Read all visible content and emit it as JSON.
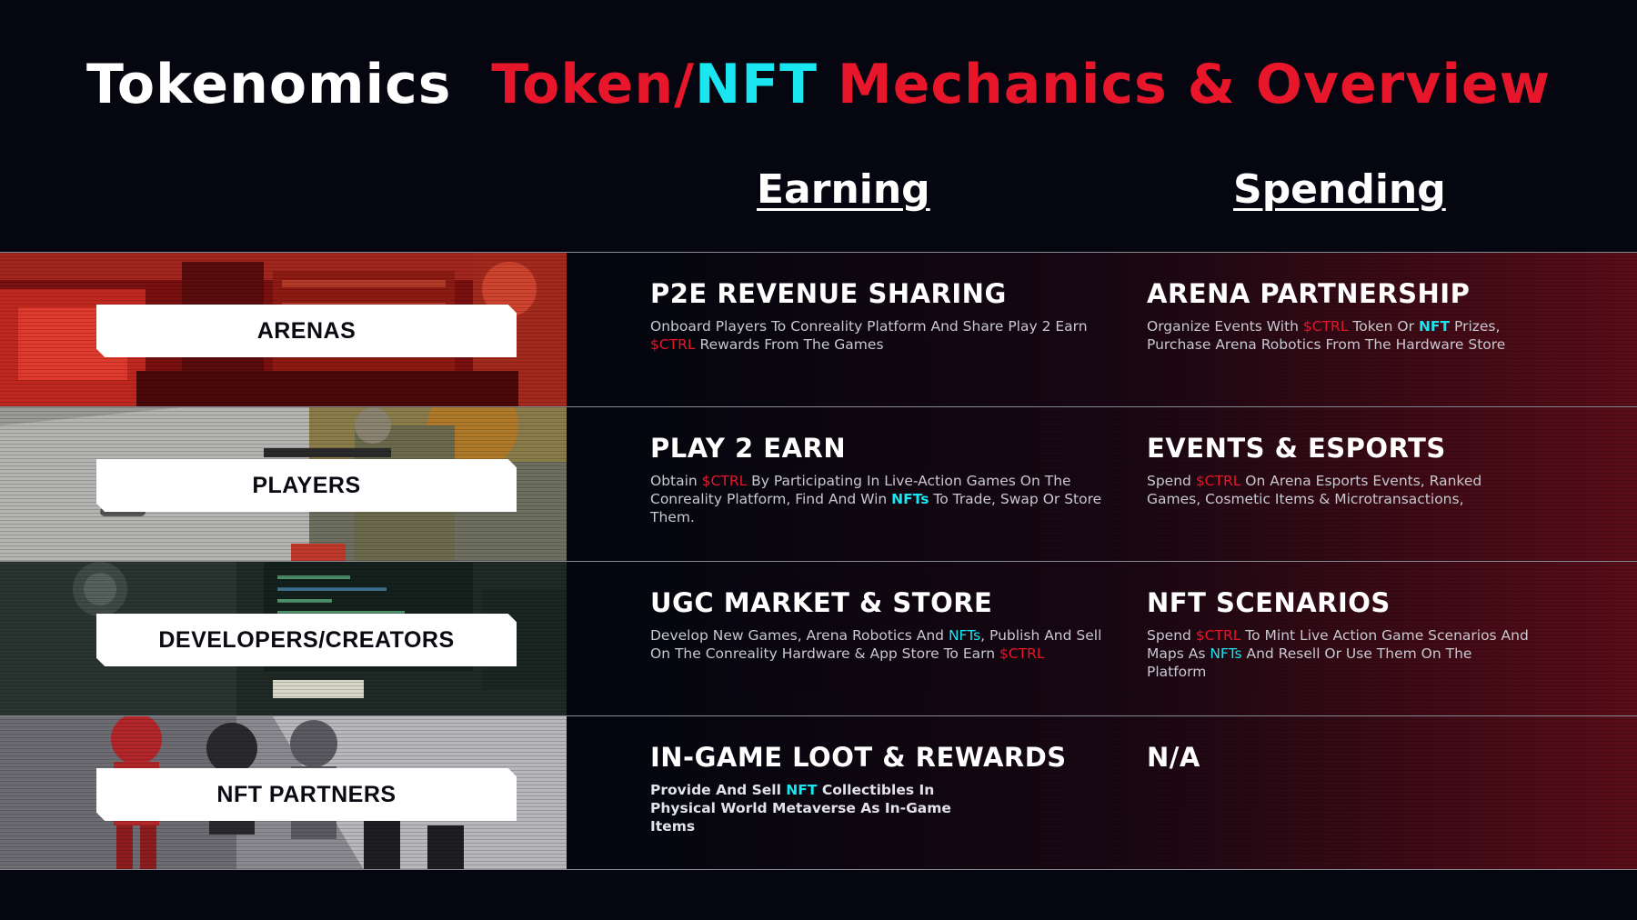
{
  "title": {
    "part1": "Tokenomics",
    "part2": "Token/",
    "part3": "NFT",
    "part4": "Mechanics & Overview"
  },
  "columns": {
    "earning": "Earning",
    "spending": "Spending"
  },
  "colors": {
    "accent_red": "#e8162b",
    "accent_cyan": "#19e6f0",
    "background": "#05060f"
  },
  "rows": [
    {
      "label": "ARENAS",
      "earn": {
        "title": "P2E REVENUE SHARING",
        "a": "Onboard Players To Conreality Platform And Share Play 2 Earn ",
        "tok": "$CTRL",
        "b": " Rewards From The Games"
      },
      "spend": {
        "title": "ARENA PARTNERSHIP",
        "a": "Organize Events With ",
        "tok": "$CTRL",
        "b": " Token Or ",
        "nft": "NFT",
        "c": " Prizes, Purchase Arena Robotics From The Hardware Store"
      }
    },
    {
      "label": "PLAYERS",
      "earn": {
        "title": "PLAY 2 EARN",
        "a": "Obtain ",
        "tok": "$CTRL",
        "b": " By Participating In Live-Action Games On The Conreality Platform, Find And Win ",
        "nft": "NFTs",
        "c": " To Trade, Swap Or Store Them."
      },
      "spend": {
        "title": "EVENTS & ESPORTS",
        "a": "Spend ",
        "tok": "$CTRL",
        "b": " On Arena Esports Events, Ranked Games, Cosmetic Items & Microtransactions,"
      }
    },
    {
      "label": "DEVELOPERS/CREATORS",
      "earn": {
        "title": "UGC MARKET & STORE",
        "a": "Develop New Games, Arena Robotics And ",
        "nft": "NFTs",
        "b": ", Publish And Sell On The Conreality Hardware & App Store To Earn ",
        "tok": "$CTRL"
      },
      "spend": {
        "title": "NFT SCENARIOS",
        "a": "Spend ",
        "tok": "$CTRL",
        "b": " To Mint Live Action Game Scenarios And Maps As ",
        "nft": "NFTs",
        "c": " And Resell Or Use Them On The Platform"
      }
    },
    {
      "label": "NFT PARTNERS",
      "earn": {
        "title": "IN-GAME LOOT & REWARDS",
        "a": "Provide And Sell ",
        "nft": "NFT",
        "b": " Collectibles In Physical World Metaverse As In-Game Items"
      },
      "spend": {
        "title": "N/A"
      }
    }
  ]
}
